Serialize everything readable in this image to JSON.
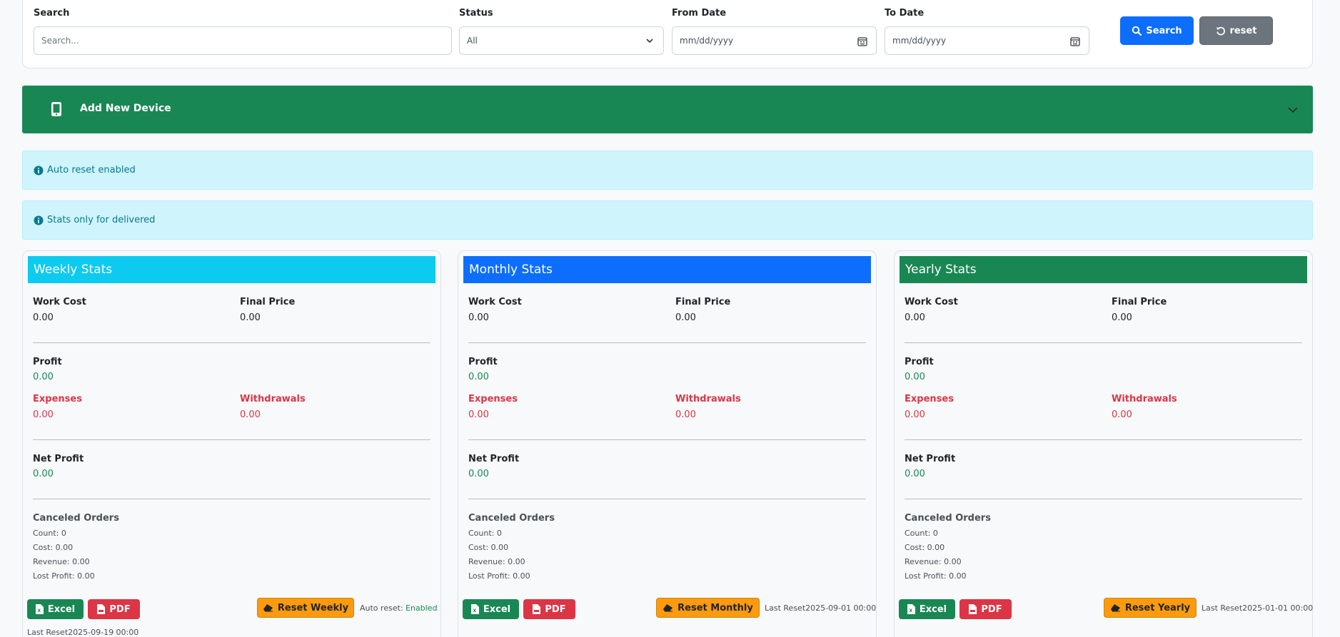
{
  "filters": {
    "search": {
      "label": "Search",
      "placeholder": "Search..."
    },
    "status": {
      "label": "Status",
      "value": "All"
    },
    "from_date": {
      "label": "From Date",
      "placeholder": "mm/dd/yyyy"
    },
    "to_date": {
      "label": "To Date",
      "placeholder": "mm/dd/yyyy"
    },
    "search_button": "Search",
    "reset_button": "reset"
  },
  "add_device": {
    "label": "Add New Device"
  },
  "alerts": {
    "auto_reset": "Auto reset enabled",
    "stats_delivered": "Stats only for delivered"
  },
  "labels": {
    "work_cost": "Work Cost",
    "final_price": "Final Price",
    "profit": "Profit",
    "expenses": "Expenses",
    "withdrawals": "Withdrawals",
    "net_profit": "Net Profit",
    "canceled_orders": "Canceled Orders",
    "count": "Count: 0",
    "cost": "Cost: 0.00",
    "revenue": "Revenue: 0.00",
    "lost_profit": "Lost Profit: 0.00",
    "excel": "Excel",
    "pdf": "PDF"
  },
  "weekly": {
    "title": "Weekly Stats",
    "work_cost": "0.00",
    "final_price": "0.00",
    "profit": "0.00",
    "expenses": "0.00",
    "withdrawals": "0.00",
    "net_profit": "0.00",
    "reset_button": "Reset Weekly",
    "auto_reset_label": "Auto reset: ",
    "auto_reset_value": "Enabled",
    "last_reset": "Last Reset2025-09-19 00:00"
  },
  "monthly": {
    "title": "Monthly Stats",
    "work_cost": "0.00",
    "final_price": "0.00",
    "profit": "0.00",
    "expenses": "0.00",
    "withdrawals": "0.00",
    "net_profit": "0.00",
    "reset_button": "Reset Monthly",
    "last_reset": "Last Reset2025-09-01 00:00"
  },
  "yearly": {
    "title": "Yearly Stats",
    "work_cost": "0.00",
    "final_price": "0.00",
    "profit": "0.00",
    "expenses": "0.00",
    "withdrawals": "0.00",
    "net_profit": "0.00",
    "reset_button": "Reset Yearly",
    "last_reset": "Last Reset2025-01-01 00:00"
  },
  "icons": {
    "search_button": "search-icon",
    "reset_button": "rotate-ccw-icon",
    "add_device": "mobile-phone-icon",
    "toggle": "chevron-down-icon",
    "alert": "info-circle-icon",
    "excel": "file-excel-icon",
    "pdf": "file-pdf-icon",
    "reset_stats": "eraser-icon"
  },
  "colors": {
    "primary": "#0d6efd",
    "success": "#198754",
    "info": "#0dcaf0",
    "danger": "#dc3545",
    "warning": "#fd9a0e",
    "secondary": "#6c757d"
  }
}
